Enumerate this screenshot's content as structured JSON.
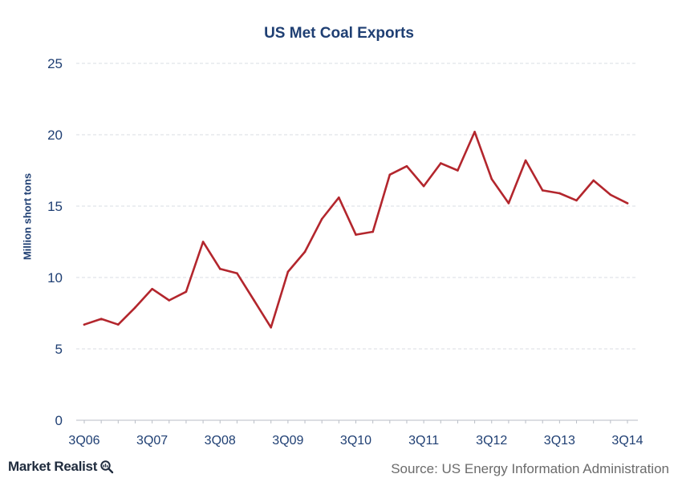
{
  "chart_data": {
    "type": "line",
    "title": "US Met Coal Exports",
    "ylabel": "Million short tons",
    "xlabel": "",
    "ylim": [
      0,
      25
    ],
    "yticks": [
      0,
      5,
      10,
      15,
      20,
      25
    ],
    "grid": true,
    "legend": "none",
    "x_tick_labels": [
      "3Q06",
      "3Q07",
      "3Q08",
      "3Q09",
      "3Q10",
      "3Q11",
      "3Q12",
      "3Q13",
      "3Q14"
    ],
    "x": [
      "3Q06",
      "4Q06",
      "1Q07",
      "2Q07",
      "3Q07",
      "4Q07",
      "1Q08",
      "2Q08",
      "3Q08",
      "4Q08",
      "1Q09",
      "2Q09",
      "3Q09",
      "4Q09",
      "1Q10",
      "2Q10",
      "3Q10",
      "4Q10",
      "1Q11",
      "2Q11",
      "3Q11",
      "4Q11",
      "1Q12",
      "2Q12",
      "3Q12",
      "4Q12",
      "1Q13",
      "2Q13",
      "3Q13",
      "4Q13",
      "1Q14",
      "2Q14",
      "3Q14"
    ],
    "series": [
      {
        "color": "#b3262d",
        "values": [
          6.7,
          7.1,
          6.7,
          7.9,
          9.2,
          8.4,
          9.0,
          12.5,
          10.6,
          10.3,
          8.4,
          6.5,
          10.4,
          11.8,
          14.1,
          15.6,
          13.0,
          13.2,
          17.2,
          17.8,
          16.4,
          18.0,
          17.5,
          20.2,
          16.9,
          15.2,
          18.2,
          16.1,
          15.9,
          15.4,
          16.8,
          15.8,
          15.2
        ]
      }
    ]
  },
  "footer": {
    "brand": "Market Realist",
    "source": "Source: US Energy Information Administration"
  },
  "colors": {
    "text_navy": "#1f3f73",
    "line": "#b3262d",
    "grid": "#d9dde3"
  }
}
